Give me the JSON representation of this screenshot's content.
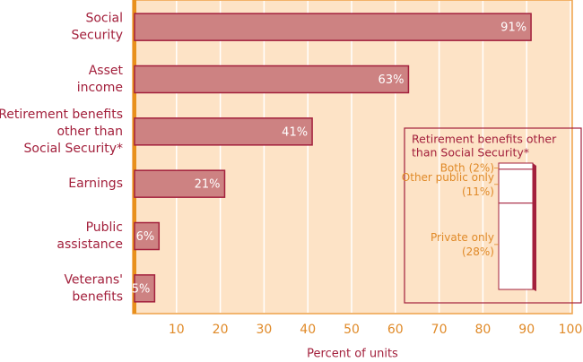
{
  "chart_data": [
    {
      "type": "hbar",
      "categories": [
        "Social\nSecurity",
        "Asset\nincome",
        "Retirement benefits\nother than\nSocial Security*",
        "Earnings",
        "Public\nassistance",
        "Veterans'\nbenefits"
      ],
      "values": [
        91,
        63,
        41,
        21,
        6,
        5
      ],
      "value_labels": [
        "91%",
        "63%",
        "41%",
        "21%",
        "6%",
        "5%"
      ],
      "color": "#cd8282",
      "xlim": [
        0,
        100
      ],
      "xticks": [
        10,
        20,
        30,
        40,
        50,
        60,
        70,
        80,
        90,
        100
      ],
      "xlabel": "Percent of units",
      "grid": true
    },
    {
      "type": "stacked-column",
      "title": "Retirement benefits other\nthan Social Security*",
      "series": [
        {
          "name": "Both",
          "values": [
            2
          ],
          "value_labels": [
            "(2%)"
          ]
        },
        {
          "name": "Other public only",
          "values": [
            11
          ],
          "value_labels": [
            "(11%)"
          ]
        },
        {
          "name": "Private only",
          "values": [
            28
          ],
          "value_labels": [
            "(28%)"
          ]
        }
      ],
      "color": "#ffffff"
    }
  ]
}
